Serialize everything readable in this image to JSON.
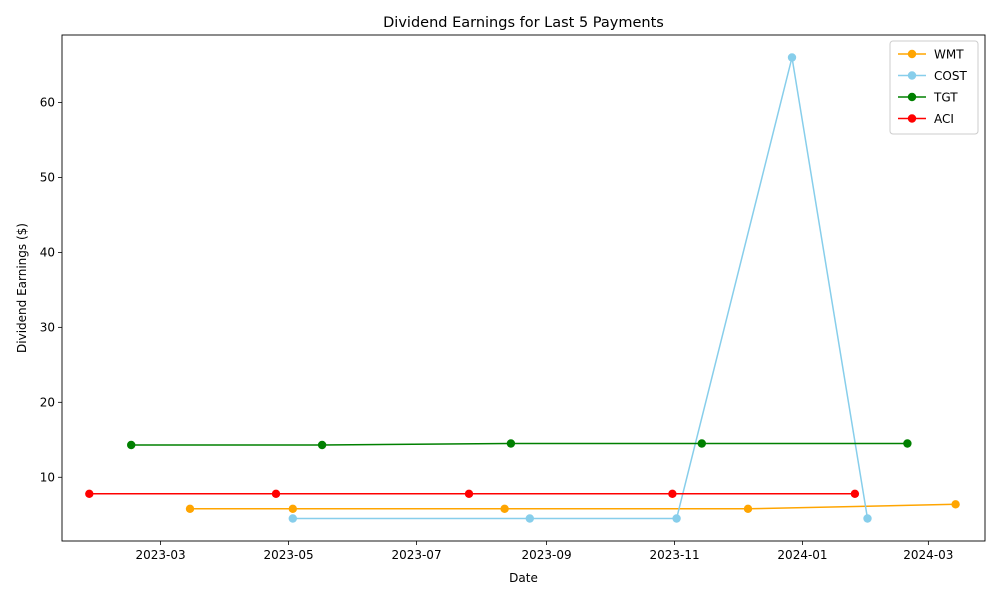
{
  "chart_data": {
    "type": "line",
    "title": "Dividend Earnings for Last 5 Payments",
    "xlabel": "Date",
    "ylabel": "Dividend Earnings ($)",
    "x_ticks": [
      "2023-03",
      "2023-05",
      "2023-07",
      "2023-09",
      "2023-11",
      "2024-01",
      "2024-03"
    ],
    "y_ticks": [
      10,
      20,
      30,
      40,
      50,
      60
    ],
    "xlim": [
      "2023-01-13",
      "2024-03-28"
    ],
    "ylim": [
      1.5,
      69
    ],
    "grid": false,
    "legend_position": "top-right",
    "series": [
      {
        "name": "WMT",
        "color": "#ffa500",
        "points": [
          {
            "x": "2023-03-15",
            "y": 5.8
          },
          {
            "x": "2023-05-03",
            "y": 5.8
          },
          {
            "x": "2023-08-12",
            "y": 5.8
          },
          {
            "x": "2023-12-06",
            "y": 5.8
          },
          {
            "x": "2024-03-14",
            "y": 6.4
          }
        ]
      },
      {
        "name": "COST",
        "color": "#87ceeb",
        "points": [
          {
            "x": "2023-05-03",
            "y": 4.5
          },
          {
            "x": "2023-08-24",
            "y": 4.5
          },
          {
            "x": "2023-11-02",
            "y": 4.5
          },
          {
            "x": "2023-12-27",
            "y": 66.0
          },
          {
            "x": "2024-02-01",
            "y": 4.5
          }
        ]
      },
      {
        "name": "TGT",
        "color": "#008000",
        "points": [
          {
            "x": "2023-02-15",
            "y": 14.3
          },
          {
            "x": "2023-05-17",
            "y": 14.3
          },
          {
            "x": "2023-08-15",
            "y": 14.5
          },
          {
            "x": "2023-11-14",
            "y": 14.5
          },
          {
            "x": "2024-02-20",
            "y": 14.5
          }
        ]
      },
      {
        "name": "ACI",
        "color": "#ff0000",
        "points": [
          {
            "x": "2023-01-26",
            "y": 7.8
          },
          {
            "x": "2023-04-25",
            "y": 7.8
          },
          {
            "x": "2023-07-26",
            "y": 7.8
          },
          {
            "x": "2023-10-31",
            "y": 7.8
          },
          {
            "x": "2024-01-26",
            "y": 7.8
          }
        ]
      }
    ]
  }
}
